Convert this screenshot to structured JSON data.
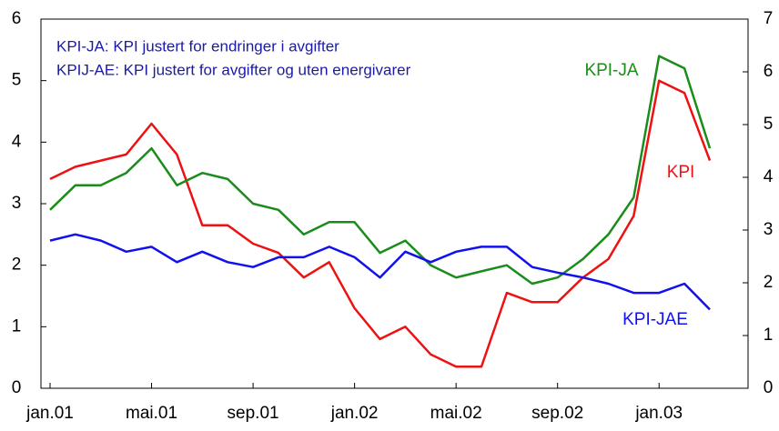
{
  "chart_data": {
    "type": "line",
    "notes": [
      "KPI-JA:   KPI justert for endringer i avgifter",
      "KPIJ-AE: KPI justert for avgifter og uten energivarer"
    ],
    "categories": [
      "jan.01",
      null,
      null,
      null,
      "mai.01",
      null,
      null,
      null,
      "sep.01",
      null,
      null,
      null,
      "jan.02",
      null,
      null,
      null,
      "mai.02",
      null,
      null,
      null,
      "sep.02",
      null,
      null,
      null,
      "jan.03",
      null,
      null
    ],
    "series": [
      {
        "name": "KPI",
        "color": "#ee1111",
        "values": [
          3.4,
          3.6,
          3.7,
          3.8,
          4.3,
          3.8,
          2.65,
          2.65,
          2.35,
          2.2,
          1.8,
          2.05,
          1.3,
          0.8,
          1.0,
          0.55,
          0.35,
          0.35,
          1.55,
          1.4,
          1.4,
          1.8,
          2.1,
          2.8,
          5.0,
          4.8,
          3.7
        ]
      },
      {
        "name": "KPI-JA",
        "color": "#1a8c1a",
        "values": [
          2.9,
          3.3,
          3.3,
          3.5,
          3.9,
          3.3,
          3.5,
          3.4,
          3.0,
          2.9,
          2.5,
          2.7,
          2.7,
          2.2,
          2.4,
          2.0,
          1.8,
          1.9,
          2.0,
          1.7,
          1.8,
          2.1,
          2.5,
          3.1,
          5.4,
          5.2,
          3.9
        ]
      },
      {
        "name": "KPI-JAE",
        "color": "#1111ee",
        "values": [
          2.4,
          2.5,
          2.4,
          2.22,
          2.3,
          2.05,
          2.22,
          2.05,
          1.97,
          2.13,
          2.13,
          2.3,
          2.13,
          1.8,
          2.22,
          2.05,
          2.22,
          2.3,
          2.3,
          1.97,
          1.88,
          1.8,
          1.7,
          1.55,
          1.55,
          1.7,
          1.28
        ]
      }
    ],
    "ylim": [
      0,
      6
    ],
    "yticks": [
      0,
      1,
      2,
      3,
      4,
      5,
      6
    ],
    "y2lim": [
      0,
      7
    ],
    "y2ticks": [
      0,
      1,
      2,
      3,
      4,
      5,
      6,
      7
    ],
    "grid": false
  }
}
